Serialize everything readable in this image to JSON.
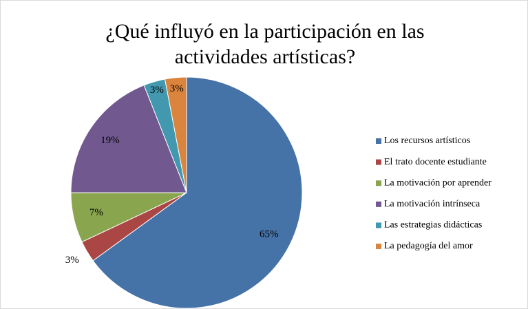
{
  "chart_data": {
    "type": "pie",
    "title": [
      "¿Qué influyó en la participación en las",
      "actividades artísticas?"
    ],
    "categories": [
      "Los recursos artísticos",
      "El trato docente estudiante",
      "La motivación por aprender",
      "La motivación intrínseca",
      "Las estrategias didácticas",
      "La pedagogía del amor"
    ],
    "values": [
      65,
      3,
      7,
      19,
      3,
      3
    ],
    "value_labels": [
      "65%",
      "3%",
      "7%",
      "19%",
      "3%",
      "3%"
    ],
    "colors": [
      "#4572a7",
      "#aa4643",
      "#89a54e",
      "#71588f",
      "#4198af",
      "#db843d"
    ],
    "legend": "right"
  }
}
